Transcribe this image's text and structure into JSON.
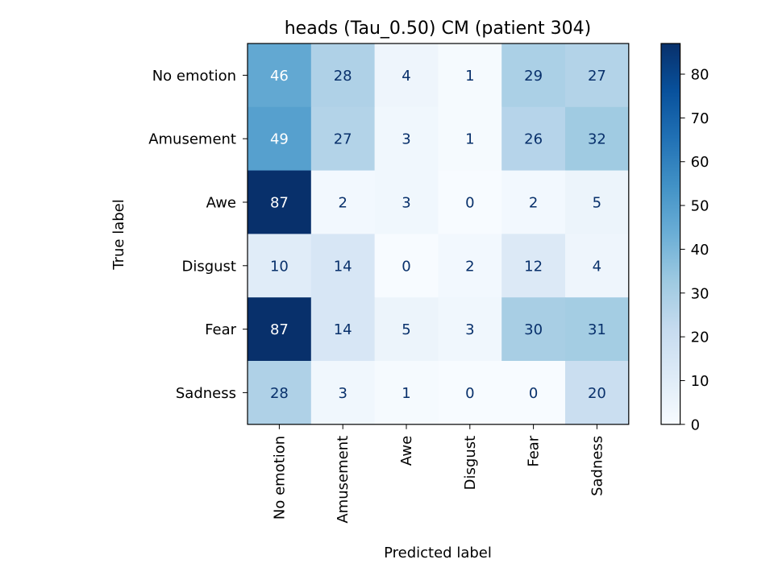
{
  "chart_data": {
    "type": "heatmap",
    "title": "heads (Tau_0.50) CM (patient 304)",
    "xlabel": "Predicted label",
    "ylabel": "True label",
    "x_categories": [
      "No emotion",
      "Amusement",
      "Awe",
      "Disgust",
      "Fear",
      "Sadness"
    ],
    "y_categories": [
      "No emotion",
      "Amusement",
      "Awe",
      "Disgust",
      "Fear",
      "Sadness"
    ],
    "values": [
      [
        46,
        28,
        4,
        1,
        29,
        27
      ],
      [
        49,
        27,
        3,
        1,
        26,
        32
      ],
      [
        87,
        2,
        3,
        0,
        2,
        5
      ],
      [
        10,
        14,
        0,
        2,
        12,
        4
      ],
      [
        87,
        14,
        5,
        3,
        30,
        31
      ],
      [
        28,
        3,
        1,
        0,
        0,
        20
      ]
    ],
    "colormap": "Blues",
    "color_range": [
      0,
      87
    ],
    "colorbar_ticks": [
      0,
      10,
      20,
      30,
      40,
      50,
      60,
      70,
      80
    ],
    "colors": {
      "low": "#f7fbff",
      "high": "#08306b",
      "text_light": "#ffffff",
      "text_dark": "#08306b"
    }
  }
}
